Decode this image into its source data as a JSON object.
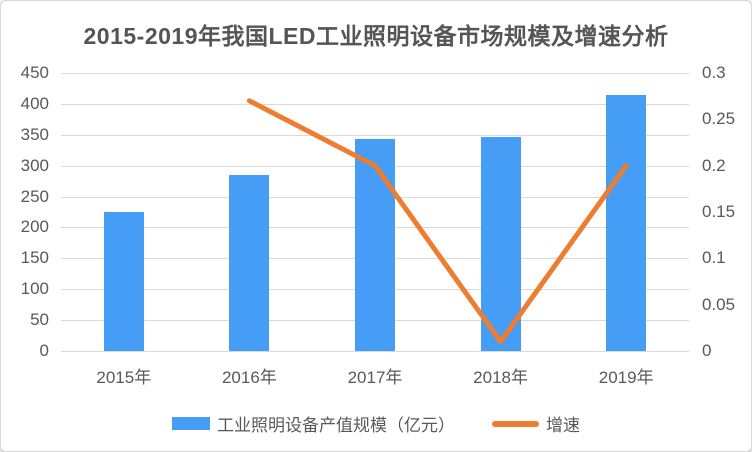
{
  "chart_data": {
    "type": "combo-bar-line",
    "title": "2015-2019年我国LED工业照明设备市场规模及增速分析",
    "categories": [
      "2015年",
      "2016年",
      "2017年",
      "2018年",
      "2019年"
    ],
    "series": [
      {
        "name": "工业照明设备产值规模（亿元）",
        "type": "bar",
        "axis": "left",
        "values": [
          225,
          285,
          343,
          347,
          415
        ]
      },
      {
        "name": "增速",
        "type": "line",
        "axis": "right",
        "values": [
          null,
          0.27,
          0.2,
          0.01,
          0.2
        ]
      }
    ],
    "left_axis": {
      "min": 0,
      "max": 450,
      "step": 50,
      "tick_labels": [
        "0",
        "50",
        "100",
        "150",
        "200",
        "250",
        "300",
        "350",
        "400",
        "450"
      ]
    },
    "right_axis": {
      "min": 0,
      "max": 0.3,
      "step": 0.05,
      "tick_labels": [
        "0",
        "0.05",
        "0.1",
        "0.15",
        "0.2",
        "0.25",
        "0.3"
      ]
    },
    "grid": true,
    "legend_position": "bottom",
    "colors": {
      "bar": "#459df5",
      "line": "#ed7d31",
      "grid": "#d9d9d9",
      "axis_text": "#595959",
      "title_text": "#555555",
      "background": "#ffffff",
      "border": "#d9d9d9"
    }
  }
}
